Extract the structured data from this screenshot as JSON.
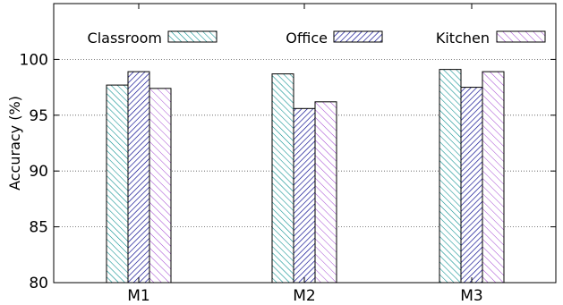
{
  "chart_data": {
    "type": "bar",
    "title": "",
    "xlabel": "",
    "ylabel": "Accuracy (%)",
    "categories": [
      "M1",
      "M2",
      "M3"
    ],
    "series": [
      {
        "name": "Classroom",
        "values": [
          97.7,
          98.7,
          99.1
        ]
      },
      {
        "name": "Office",
        "values": [
          98.9,
          95.6,
          97.5
        ]
      },
      {
        "name": "Kitchen",
        "values": [
          97.4,
          96.2,
          98.9
        ]
      }
    ],
    "ylim": [
      80,
      105
    ],
    "yticks": [
      80,
      85,
      90,
      95,
      100
    ],
    "grid": "horizontal dotted",
    "legend": "top",
    "colors": {
      "Classroom": "#008b8b",
      "Office": "#00008b",
      "Kitchen": "#9932cc"
    },
    "patterns": {
      "Classroom": "dense diagonal hatch (\\\\)",
      "Office": "dense diagonal hatch (//)",
      "Kitchen": "sparse diagonal hatch (\\\\)"
    }
  }
}
